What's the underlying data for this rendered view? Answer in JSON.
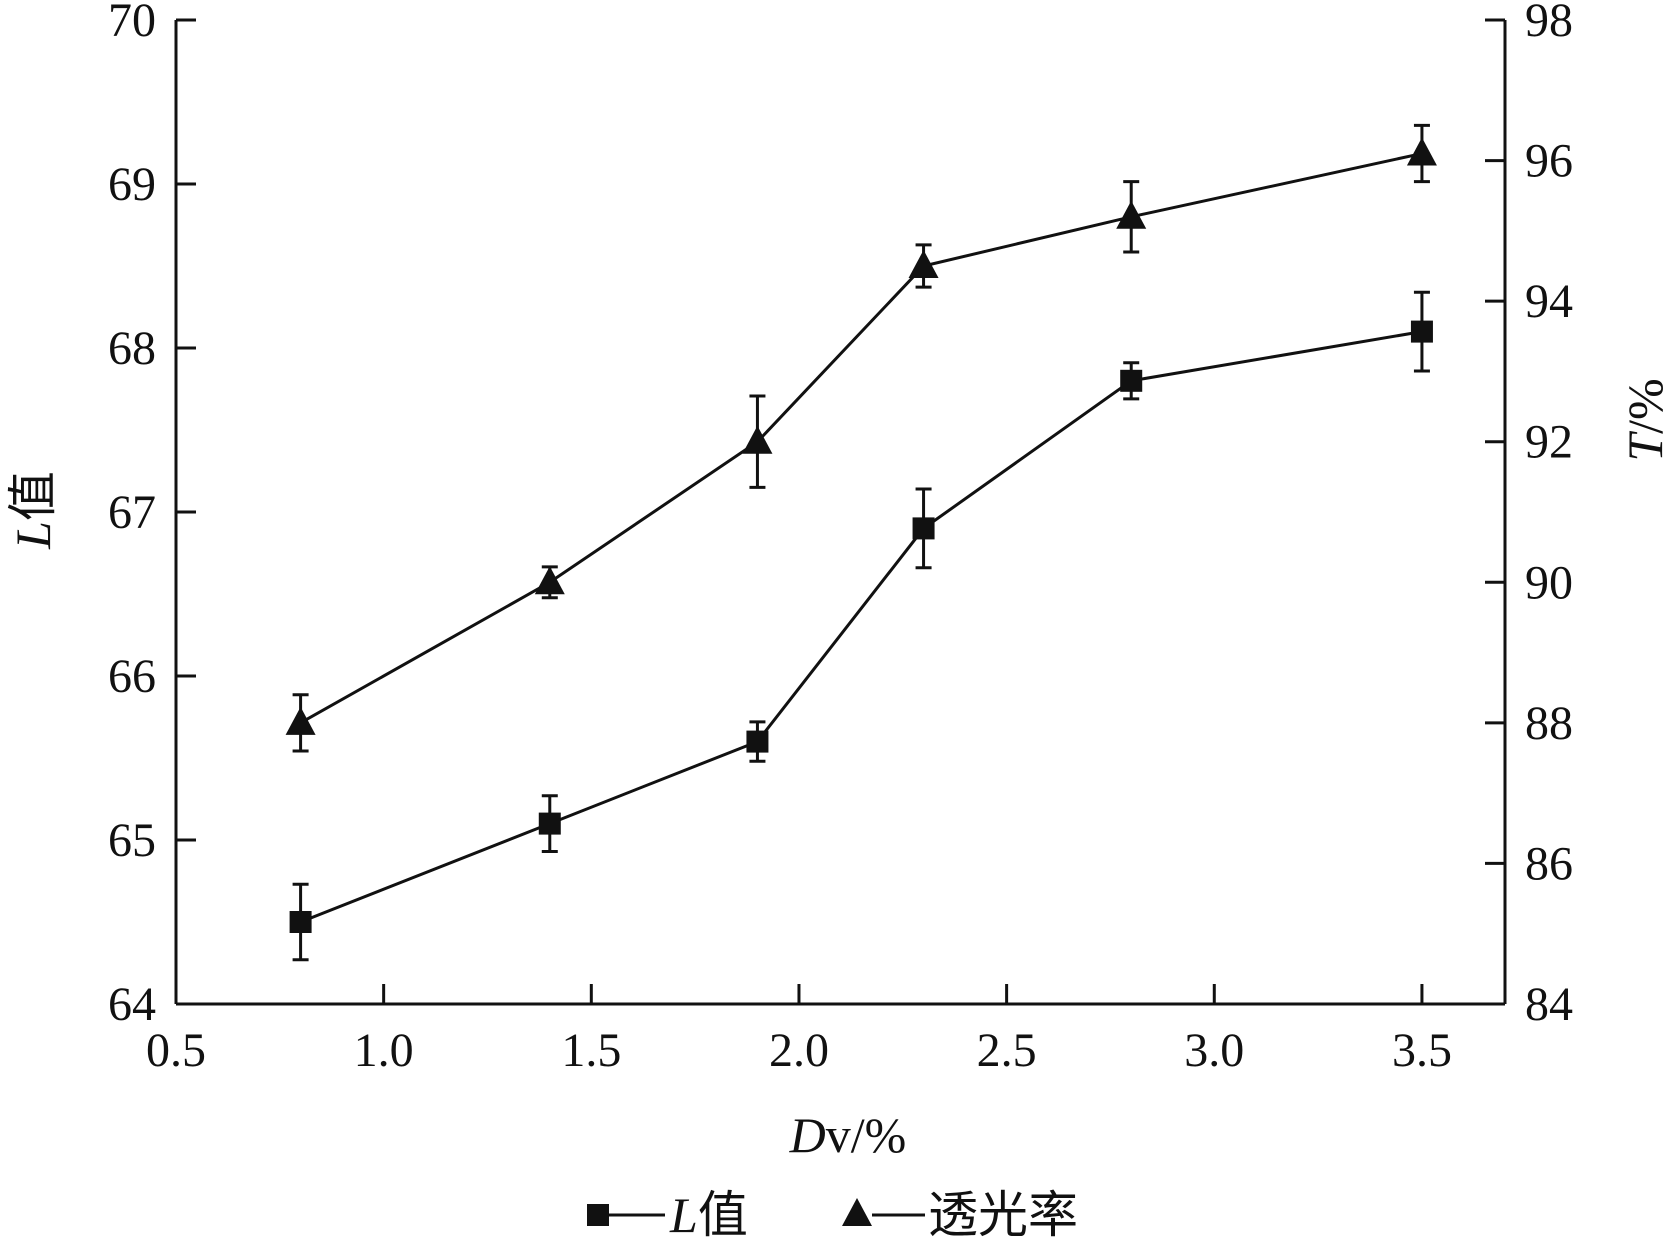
{
  "chart_data": {
    "type": "line",
    "x": [
      0.8,
      1.4,
      1.9,
      2.3,
      2.8,
      3.5
    ],
    "xlabel_italic": "D",
    "xlabel_rest": "v/%",
    "ylabel_left_italic": "L",
    "ylabel_left_rest": "值",
    "ylabel_right_italic": "T",
    "ylabel_right_rest": "/%",
    "xlim": [
      0.5,
      3.7
    ],
    "ylim_left": [
      64,
      70
    ],
    "ylim_right": [
      84,
      98
    ],
    "xticks": [
      "0.5",
      "1.0",
      "1.5",
      "2.0",
      "2.5",
      "3.0",
      "3.5"
    ],
    "yticks_left": [
      "64",
      "65",
      "66",
      "67",
      "68",
      "69",
      "70"
    ],
    "yticks_right": [
      "84",
      "86",
      "88",
      "90",
      "92",
      "94",
      "96",
      "98"
    ],
    "grid": false,
    "legend_position": "bottom",
    "series": [
      {
        "legend_italic": "L",
        "legend_rest": "值",
        "axis": "left",
        "marker": "square",
        "values": [
          64.5,
          65.1,
          65.6,
          66.9,
          67.8,
          68.1
        ],
        "errors": [
          0.23,
          0.17,
          0.12,
          0.24,
          0.11,
          0.24
        ]
      },
      {
        "legend_italic": "",
        "legend_rest": "透光率",
        "axis": "right",
        "marker": "triangle",
        "values": [
          88.0,
          90.0,
          92.0,
          94.5,
          95.2,
          96.1
        ],
        "errors": [
          0.4,
          0.22,
          0.65,
          0.3,
          0.5,
          0.4
        ]
      }
    ],
    "color": "#111111"
  }
}
